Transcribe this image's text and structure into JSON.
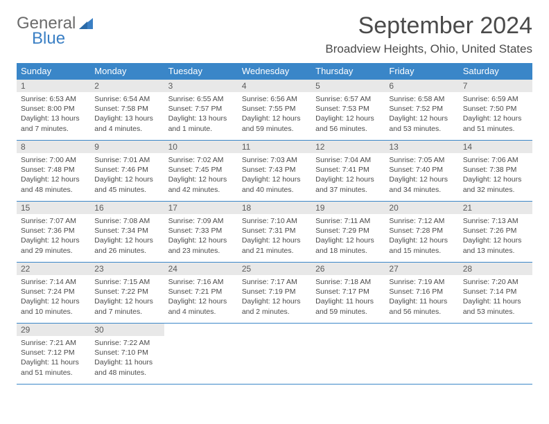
{
  "logo": {
    "textGray": "General",
    "textBlue": "Blue"
  },
  "title": "September 2024",
  "location": "Broadview Heights, Ohio, United States",
  "colors": {
    "headerBg": "#3a86c8",
    "headerText": "#ffffff",
    "dayBarBg": "#e8e8e8",
    "border": "#3a86c8",
    "bodyText": "#4a4a4a",
    "logoGray": "#6b6b6b",
    "logoBlue": "#3a7fc4"
  },
  "calendar": {
    "type": "table",
    "columns": [
      "Sunday",
      "Monday",
      "Tuesday",
      "Wednesday",
      "Thursday",
      "Friday",
      "Saturday"
    ],
    "weeks": [
      [
        {
          "day": "1",
          "sunrise": "6:53 AM",
          "sunset": "8:00 PM",
          "daylight": "13 hours and 7 minutes."
        },
        {
          "day": "2",
          "sunrise": "6:54 AM",
          "sunset": "7:58 PM",
          "daylight": "13 hours and 4 minutes."
        },
        {
          "day": "3",
          "sunrise": "6:55 AM",
          "sunset": "7:57 PM",
          "daylight": "13 hours and 1 minute."
        },
        {
          "day": "4",
          "sunrise": "6:56 AM",
          "sunset": "7:55 PM",
          "daylight": "12 hours and 59 minutes."
        },
        {
          "day": "5",
          "sunrise": "6:57 AM",
          "sunset": "7:53 PM",
          "daylight": "12 hours and 56 minutes."
        },
        {
          "day": "6",
          "sunrise": "6:58 AM",
          "sunset": "7:52 PM",
          "daylight": "12 hours and 53 minutes."
        },
        {
          "day": "7",
          "sunrise": "6:59 AM",
          "sunset": "7:50 PM",
          "daylight": "12 hours and 51 minutes."
        }
      ],
      [
        {
          "day": "8",
          "sunrise": "7:00 AM",
          "sunset": "7:48 PM",
          "daylight": "12 hours and 48 minutes."
        },
        {
          "day": "9",
          "sunrise": "7:01 AM",
          "sunset": "7:46 PM",
          "daylight": "12 hours and 45 minutes."
        },
        {
          "day": "10",
          "sunrise": "7:02 AM",
          "sunset": "7:45 PM",
          "daylight": "12 hours and 42 minutes."
        },
        {
          "day": "11",
          "sunrise": "7:03 AM",
          "sunset": "7:43 PM",
          "daylight": "12 hours and 40 minutes."
        },
        {
          "day": "12",
          "sunrise": "7:04 AM",
          "sunset": "7:41 PM",
          "daylight": "12 hours and 37 minutes."
        },
        {
          "day": "13",
          "sunrise": "7:05 AM",
          "sunset": "7:40 PM",
          "daylight": "12 hours and 34 minutes."
        },
        {
          "day": "14",
          "sunrise": "7:06 AM",
          "sunset": "7:38 PM",
          "daylight": "12 hours and 32 minutes."
        }
      ],
      [
        {
          "day": "15",
          "sunrise": "7:07 AM",
          "sunset": "7:36 PM",
          "daylight": "12 hours and 29 minutes."
        },
        {
          "day": "16",
          "sunrise": "7:08 AM",
          "sunset": "7:34 PM",
          "daylight": "12 hours and 26 minutes."
        },
        {
          "day": "17",
          "sunrise": "7:09 AM",
          "sunset": "7:33 PM",
          "daylight": "12 hours and 23 minutes."
        },
        {
          "day": "18",
          "sunrise": "7:10 AM",
          "sunset": "7:31 PM",
          "daylight": "12 hours and 21 minutes."
        },
        {
          "day": "19",
          "sunrise": "7:11 AM",
          "sunset": "7:29 PM",
          "daylight": "12 hours and 18 minutes."
        },
        {
          "day": "20",
          "sunrise": "7:12 AM",
          "sunset": "7:28 PM",
          "daylight": "12 hours and 15 minutes."
        },
        {
          "day": "21",
          "sunrise": "7:13 AM",
          "sunset": "7:26 PM",
          "daylight": "12 hours and 13 minutes."
        }
      ],
      [
        {
          "day": "22",
          "sunrise": "7:14 AM",
          "sunset": "7:24 PM",
          "daylight": "12 hours and 10 minutes."
        },
        {
          "day": "23",
          "sunrise": "7:15 AM",
          "sunset": "7:22 PM",
          "daylight": "12 hours and 7 minutes."
        },
        {
          "day": "24",
          "sunrise": "7:16 AM",
          "sunset": "7:21 PM",
          "daylight": "12 hours and 4 minutes."
        },
        {
          "day": "25",
          "sunrise": "7:17 AM",
          "sunset": "7:19 PM",
          "daylight": "12 hours and 2 minutes."
        },
        {
          "day": "26",
          "sunrise": "7:18 AM",
          "sunset": "7:17 PM",
          "daylight": "11 hours and 59 minutes."
        },
        {
          "day": "27",
          "sunrise": "7:19 AM",
          "sunset": "7:16 PM",
          "daylight": "11 hours and 56 minutes."
        },
        {
          "day": "28",
          "sunrise": "7:20 AM",
          "sunset": "7:14 PM",
          "daylight": "11 hours and 53 minutes."
        }
      ],
      [
        {
          "day": "29",
          "sunrise": "7:21 AM",
          "sunset": "7:12 PM",
          "daylight": "11 hours and 51 minutes."
        },
        {
          "day": "30",
          "sunrise": "7:22 AM",
          "sunset": "7:10 PM",
          "daylight": "11 hours and 48 minutes."
        },
        null,
        null,
        null,
        null,
        null
      ]
    ],
    "labels": {
      "sunrise": "Sunrise: ",
      "sunset": "Sunset: ",
      "daylight": "Daylight: "
    }
  }
}
